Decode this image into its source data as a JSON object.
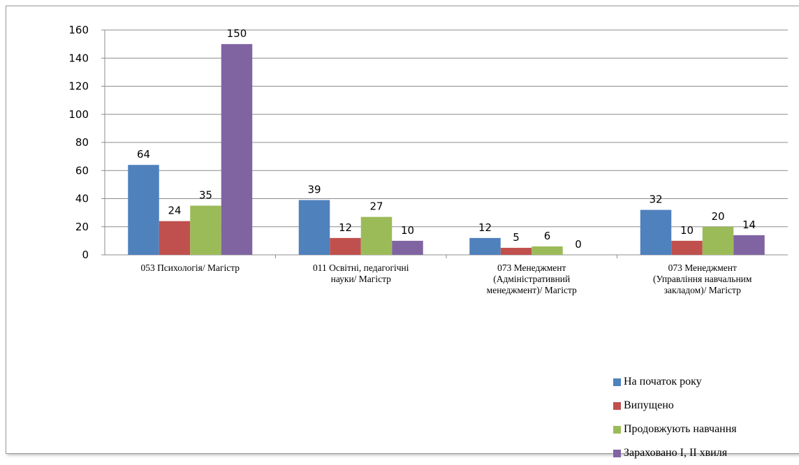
{
  "chart_data": {
    "type": "bar",
    "categories": [
      [
        "053 Психологія/ Магістр"
      ],
      [
        "011 Освітні, педагогічні",
        "науки/ Магістр"
      ],
      [
        "073 Менеджмент",
        "(Адміністративний",
        "менеджмент)/ Магістр"
      ],
      [
        "073 Менеджмент",
        "(Управління навчальним",
        "закладом)/ Магістр"
      ]
    ],
    "series": [
      {
        "name": "На початок року",
        "color": "#4f81bd",
        "values": [
          64,
          39,
          12,
          32
        ]
      },
      {
        "name": "Випущено",
        "color": "#c0504d",
        "values": [
          24,
          12,
          5,
          10
        ]
      },
      {
        "name": "Продовжують навчання",
        "color": "#9bbb59",
        "values": [
          35,
          27,
          6,
          20
        ]
      },
      {
        "name": "Зараховано І, ІІ хвиля",
        "color": "#8064a2",
        "values": [
          150,
          10,
          0,
          14
        ]
      }
    ],
    "ylim": [
      0,
      160
    ],
    "yticks": [
      "0",
      "20",
      "40",
      "60",
      "80",
      "100",
      "120",
      "140",
      "160"
    ],
    "grid": true,
    "legend_position": "bottom-right",
    "data_labels": true
  }
}
